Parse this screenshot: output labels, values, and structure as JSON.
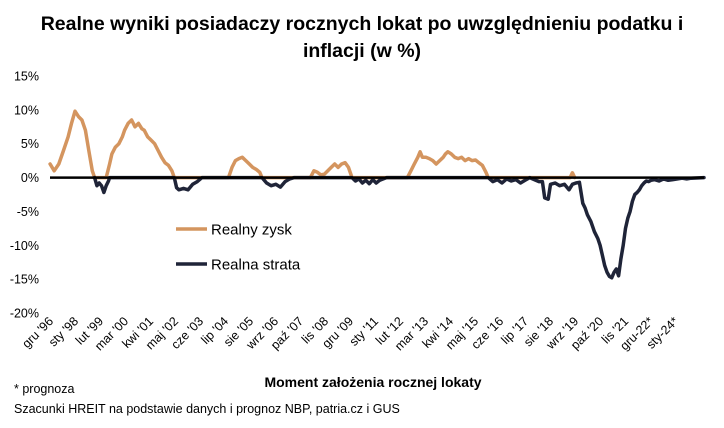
{
  "title_line1": "Realne wyniki posiadaczy rocznych lokat po uwzględnieniu podatku i",
  "title_line2": "inflacji (w %)",
  "footnotes": [
    "* prognoza",
    "Szacunki HREIT na podstawie danych i prognoz NBP,  patria.cz  i GUS"
  ],
  "colors": {
    "profit": "#d4955f",
    "loss": "#1f2438",
    "axis": "#000000"
  },
  "chart_data": {
    "type": "line",
    "title": "Realne wyniki posiadaczy rocznych lokat po uwzględnieniu podatku i inflacji (w %)",
    "xlabel": "Moment założenia rocznej lokaty",
    "ylabel": "",
    "ylim": [
      -20,
      15
    ],
    "yticks": [
      "15%",
      "10%",
      "5%",
      "0%",
      "-5%",
      "-10%",
      "-15%",
      "-20%"
    ],
    "ytick_values": [
      15,
      10,
      5,
      0,
      -5,
      -10,
      -15,
      -20
    ],
    "x_range": [
      1996.917,
      2025.25
    ],
    "xticks": [
      {
        "label": "gru '96",
        "t": 1996.917
      },
      {
        "label": "sty '98",
        "t": 1998.0
      },
      {
        "label": "lut '99",
        "t": 1999.083
      },
      {
        "label": "mar '00",
        "t": 2000.167
      },
      {
        "label": "kwi '01",
        "t": 2001.25
      },
      {
        "label": "maj '02",
        "t": 2002.333
      },
      {
        "label": "cze '03",
        "t": 2003.417
      },
      {
        "label": "lip '04",
        "t": 2004.5
      },
      {
        "label": "sie '05",
        "t": 2005.583
      },
      {
        "label": "wrz '06",
        "t": 2006.667
      },
      {
        "label": "paź '07",
        "t": 2007.75
      },
      {
        "label": "lis '08",
        "t": 2008.833
      },
      {
        "label": "gru '09",
        "t": 2009.917
      },
      {
        "label": "sty '11",
        "t": 2011.0
      },
      {
        "label": "lut '12",
        "t": 2012.083
      },
      {
        "label": "mar '13",
        "t": 2013.167
      },
      {
        "label": "kwi '14",
        "t": 2014.25
      },
      {
        "label": "maj '15",
        "t": 2015.333
      },
      {
        "label": "cze '16",
        "t": 2016.417
      },
      {
        "label": "lip '17",
        "t": 2017.5
      },
      {
        "label": "sie '18",
        "t": 2018.583
      },
      {
        "label": "wrz '19",
        "t": 2019.667
      },
      {
        "label": "paź '20",
        "t": 2020.75
      },
      {
        "label": "lis '21",
        "t": 2021.833
      },
      {
        "label": "gru-22*",
        "t": 2022.917
      },
      {
        "label": "sty-24*",
        "t": 2024.0
      }
    ],
    "legend": {
      "placement": "center-left"
    },
    "series": [
      {
        "name": "Realny zysk",
        "color": "#d4955f",
        "points": [
          [
            1996.92,
            2.0
          ],
          [
            1997.1,
            1.0
          ],
          [
            1997.3,
            2.0
          ],
          [
            1997.5,
            4.0
          ],
          [
            1997.7,
            6.0
          ],
          [
            1997.85,
            8.0
          ],
          [
            1998.0,
            9.8
          ],
          [
            1998.15,
            9.0
          ],
          [
            1998.3,
            8.5
          ],
          [
            1998.45,
            7.0
          ],
          [
            1998.6,
            4.0
          ],
          [
            1998.75,
            1.0
          ],
          [
            1998.85,
            0.0
          ],
          [
            1999.35,
            0.0
          ],
          [
            1999.5,
            2.0
          ],
          [
            1999.6,
            3.5
          ],
          [
            1999.75,
            4.5
          ],
          [
            1999.9,
            5.0
          ],
          [
            2000.05,
            6.0
          ],
          [
            2000.15,
            7.0
          ],
          [
            2000.3,
            8.0
          ],
          [
            2000.45,
            8.5
          ],
          [
            2000.6,
            7.5
          ],
          [
            2000.75,
            8.0
          ],
          [
            2000.9,
            7.2
          ],
          [
            2001.0,
            7.0
          ],
          [
            2001.15,
            6.0
          ],
          [
            2001.3,
            5.5
          ],
          [
            2001.45,
            5.0
          ],
          [
            2001.6,
            4.0
          ],
          [
            2001.75,
            3.0
          ],
          [
            2001.9,
            2.2
          ],
          [
            2002.05,
            1.8
          ],
          [
            2002.2,
            1.0
          ],
          [
            2002.3,
            0.0
          ],
          [
            2004.65,
            0.0
          ],
          [
            2004.8,
            1.5
          ],
          [
            2004.95,
            2.5
          ],
          [
            2005.1,
            2.8
          ],
          [
            2005.25,
            3.0
          ],
          [
            2005.4,
            2.5
          ],
          [
            2005.55,
            2.0
          ],
          [
            2005.7,
            1.5
          ],
          [
            2005.85,
            1.2
          ],
          [
            2006.0,
            0.8
          ],
          [
            2006.1,
            0.0
          ],
          [
            2008.2,
            0.0
          ],
          [
            2008.35,
            1.0
          ],
          [
            2008.5,
            0.8
          ],
          [
            2008.65,
            0.4
          ],
          [
            2008.8,
            0.5
          ],
          [
            2008.95,
            1.0
          ],
          [
            2009.1,
            1.5
          ],
          [
            2009.25,
            2.0
          ],
          [
            2009.4,
            1.5
          ],
          [
            2009.55,
            2.0
          ],
          [
            2009.7,
            2.2
          ],
          [
            2009.85,
            1.5
          ],
          [
            2010.0,
            0.0
          ],
          [
            2012.4,
            0.0
          ],
          [
            2012.55,
            1.0
          ],
          [
            2012.7,
            2.0
          ],
          [
            2012.85,
            3.0
          ],
          [
            2012.95,
            3.8
          ],
          [
            2013.05,
            3.0
          ],
          [
            2013.2,
            3.0
          ],
          [
            2013.35,
            2.8
          ],
          [
            2013.5,
            2.5
          ],
          [
            2013.65,
            2.0
          ],
          [
            2013.8,
            2.5
          ],
          [
            2013.95,
            3.0
          ],
          [
            2014.05,
            3.5
          ],
          [
            2014.15,
            3.8
          ],
          [
            2014.3,
            3.5
          ],
          [
            2014.45,
            3.0
          ],
          [
            2014.6,
            2.8
          ],
          [
            2014.75,
            3.0
          ],
          [
            2014.9,
            2.5
          ],
          [
            2015.05,
            2.8
          ],
          [
            2015.2,
            2.5
          ],
          [
            2015.35,
            2.6
          ],
          [
            2015.5,
            2.2
          ],
          [
            2015.65,
            1.8
          ],
          [
            2015.8,
            0.8
          ],
          [
            2015.9,
            0.0
          ],
          [
            2019.45,
            0.0
          ],
          [
            2019.55,
            0.7
          ],
          [
            2019.65,
            0.0
          ]
        ]
      },
      {
        "name": "Realna strata",
        "color": "#1f2438",
        "points": [
          [
            1998.85,
            0.0
          ],
          [
            1998.95,
            -1.2
          ],
          [
            1999.05,
            -0.8
          ],
          [
            1999.15,
            -1.2
          ],
          [
            1999.25,
            -2.2
          ],
          [
            1999.35,
            -1.2
          ],
          [
            1999.45,
            -0.5
          ],
          [
            1999.5,
            0.0
          ],
          [
            2002.3,
            0.0
          ],
          [
            2002.4,
            -1.5
          ],
          [
            2002.5,
            -1.8
          ],
          [
            2002.7,
            -1.6
          ],
          [
            2002.9,
            -1.8
          ],
          [
            2003.1,
            -1.0
          ],
          [
            2003.3,
            -0.6
          ],
          [
            2003.5,
            0.0
          ],
          [
            2006.1,
            0.0
          ],
          [
            2006.3,
            -0.8
          ],
          [
            2006.5,
            -1.2
          ],
          [
            2006.7,
            -1.0
          ],
          [
            2006.9,
            -1.4
          ],
          [
            2007.1,
            -0.6
          ],
          [
            2007.3,
            -0.2
          ],
          [
            2007.5,
            0.0
          ],
          [
            2010.0,
            0.0
          ],
          [
            2010.15,
            -0.5
          ],
          [
            2010.3,
            -0.2
          ],
          [
            2010.45,
            -0.8
          ],
          [
            2010.6,
            -0.4
          ],
          [
            2010.75,
            -0.9
          ],
          [
            2010.9,
            -0.3
          ],
          [
            2011.05,
            -0.8
          ],
          [
            2011.2,
            -0.4
          ],
          [
            2011.35,
            -0.2
          ],
          [
            2011.5,
            0.0
          ],
          [
            2015.9,
            0.0
          ],
          [
            2016.1,
            -0.6
          ],
          [
            2016.3,
            -0.3
          ],
          [
            2016.5,
            -0.8
          ],
          [
            2016.7,
            -0.2
          ],
          [
            2016.9,
            -0.5
          ],
          [
            2017.1,
            -0.3
          ],
          [
            2017.3,
            -0.8
          ],
          [
            2017.5,
            -0.4
          ],
          [
            2017.7,
            0.0
          ],
          [
            2017.9,
            -0.3
          ],
          [
            2018.1,
            -0.6
          ],
          [
            2018.25,
            -0.6
          ],
          [
            2018.35,
            -3.0
          ],
          [
            2018.5,
            -3.2
          ],
          [
            2018.6,
            -1.0
          ],
          [
            2018.8,
            -0.8
          ],
          [
            2019.0,
            -1.2
          ],
          [
            2019.2,
            -1.0
          ],
          [
            2019.4,
            -1.8
          ],
          [
            2019.55,
            -1.0
          ],
          [
            2019.7,
            -0.8
          ],
          [
            2019.85,
            -0.7
          ],
          [
            2020.0,
            -3.8
          ],
          [
            2020.1,
            -4.5
          ],
          [
            2020.2,
            -5.5
          ],
          [
            2020.35,
            -6.5
          ],
          [
            2020.5,
            -8.0
          ],
          [
            2020.65,
            -9.0
          ],
          [
            2020.75,
            -10.0
          ],
          [
            2020.85,
            -11.5
          ],
          [
            2020.95,
            -13.0
          ],
          [
            2021.05,
            -14.0
          ],
          [
            2021.15,
            -14.6
          ],
          [
            2021.25,
            -14.8
          ],
          [
            2021.35,
            -14.0
          ],
          [
            2021.45,
            -13.5
          ],
          [
            2021.55,
            -14.5
          ],
          [
            2021.65,
            -12.0
          ],
          [
            2021.75,
            -10.0
          ],
          [
            2021.85,
            -7.5
          ],
          [
            2021.95,
            -6.0
          ],
          [
            2022.05,
            -5.0
          ],
          [
            2022.15,
            -3.5
          ],
          [
            2022.25,
            -2.5
          ],
          [
            2022.35,
            -2.2
          ],
          [
            2022.45,
            -1.8
          ],
          [
            2022.55,
            -1.2
          ],
          [
            2022.65,
            -0.8
          ],
          [
            2022.75,
            -0.5
          ],
          [
            2022.85,
            -0.6
          ],
          [
            2022.95,
            -0.4
          ],
          [
            2023.1,
            -0.3
          ],
          [
            2023.3,
            -0.5
          ],
          [
            2023.5,
            -0.2
          ],
          [
            2023.7,
            -0.4
          ],
          [
            2023.9,
            -0.3
          ],
          [
            2024.1,
            -0.2
          ],
          [
            2024.3,
            -0.1
          ],
          [
            2024.5,
            -0.2
          ],
          [
            2024.7,
            -0.1
          ],
          [
            2025.25,
            0.0
          ]
        ]
      }
    ]
  }
}
